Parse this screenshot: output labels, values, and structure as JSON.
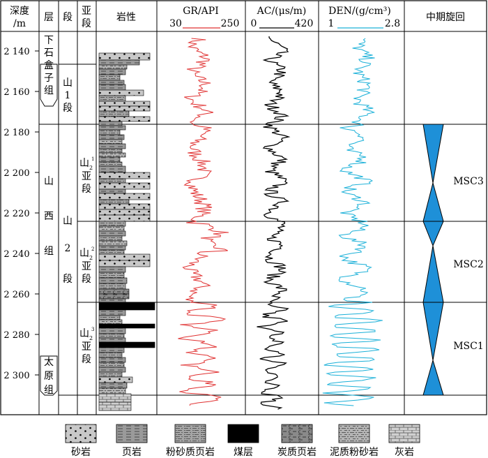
{
  "header": {
    "depth": [
      "深度",
      "/m"
    ],
    "formation": "层",
    "member": "段",
    "submember": [
      "亚",
      "段"
    ],
    "lithology": "岩性",
    "gr": {
      "name": "GR/API",
      "min": "30",
      "max": "250",
      "color": "#e03030"
    },
    "ac": {
      "name": "AC/(μs/m)",
      "min": "0",
      "max": "420",
      "color": "#000000"
    },
    "den": {
      "name": "DEN/(g/cm³)",
      "min": "1",
      "max": "2.8",
      "color": "#1ab0d8"
    },
    "cycle": "中期旋回"
  },
  "depth_ticks": [
    "2 140",
    "2 160",
    "2 180",
    "2 200",
    "2 220",
    "2 240",
    "2 260",
    "2 280",
    "2 300"
  ],
  "formations": {
    "upper": [
      "下",
      "石",
      "盒",
      "子",
      "组"
    ],
    "shanxi": [
      "山",
      "西",
      "组"
    ],
    "taiyuan": [
      "太",
      "原",
      "组"
    ]
  },
  "members": {
    "shan1": [
      "山",
      "1",
      "段"
    ],
    "shan2": [
      "山",
      "2",
      "段"
    ]
  },
  "submembers": [
    {
      "base": "山",
      "sub": "2",
      "sup": "1",
      "rest": [
        "亚",
        "段"
      ]
    },
    {
      "base": "山",
      "sub": "2",
      "sup": "2",
      "rest": [
        "亚",
        "段"
      ]
    },
    {
      "base": "山",
      "sub": "2",
      "sup": "3",
      "rest": [
        "亚",
        "段"
      ]
    }
  ],
  "cycles": [
    "MSC3",
    "MSC2",
    "MSC1"
  ],
  "cycle_color": "#1e90d8",
  "legend": [
    {
      "key": "sand",
      "label": "砂岩"
    },
    {
      "key": "shale",
      "label": "页岩"
    },
    {
      "key": "silty_shale",
      "label": "粉砂质页岩"
    },
    {
      "key": "coal",
      "label": "煤层"
    },
    {
      "key": "carb_shale",
      "label": "炭质页岩"
    },
    {
      "key": "muddy_silt",
      "label": "泥质粉砂岩"
    },
    {
      "key": "limestone",
      "label": "灰岩"
    }
  ]
}
